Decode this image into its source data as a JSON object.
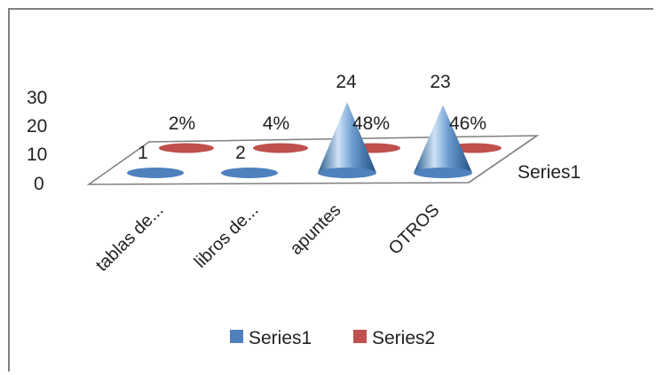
{
  "chart_data": {
    "type": "3d-cone-column",
    "title": "",
    "xlabel": "",
    "ylabel": "",
    "ylim": [
      0,
      30
    ],
    "yticks": [
      0,
      10,
      20,
      30
    ],
    "categories": [
      "tablas de...",
      "libros de...",
      "apuntes",
      "OTROS"
    ],
    "series": [
      {
        "name": "Series1",
        "values": [
          1,
          2,
          24,
          23
        ],
        "labels": [
          "1",
          "2",
          "24",
          "23"
        ],
        "color": "#4f81bd"
      },
      {
        "name": "Series2",
        "values": [
          0.02,
          0.04,
          0.48,
          0.46
        ],
        "labels": [
          "2%",
          "4%",
          "48%",
          "46%"
        ],
        "color": "#c0504d"
      }
    ],
    "depth_axis_label": "Series1",
    "legend": {
      "position": "bottom",
      "items": [
        "Series1",
        "Series2"
      ]
    },
    "grid": false
  }
}
